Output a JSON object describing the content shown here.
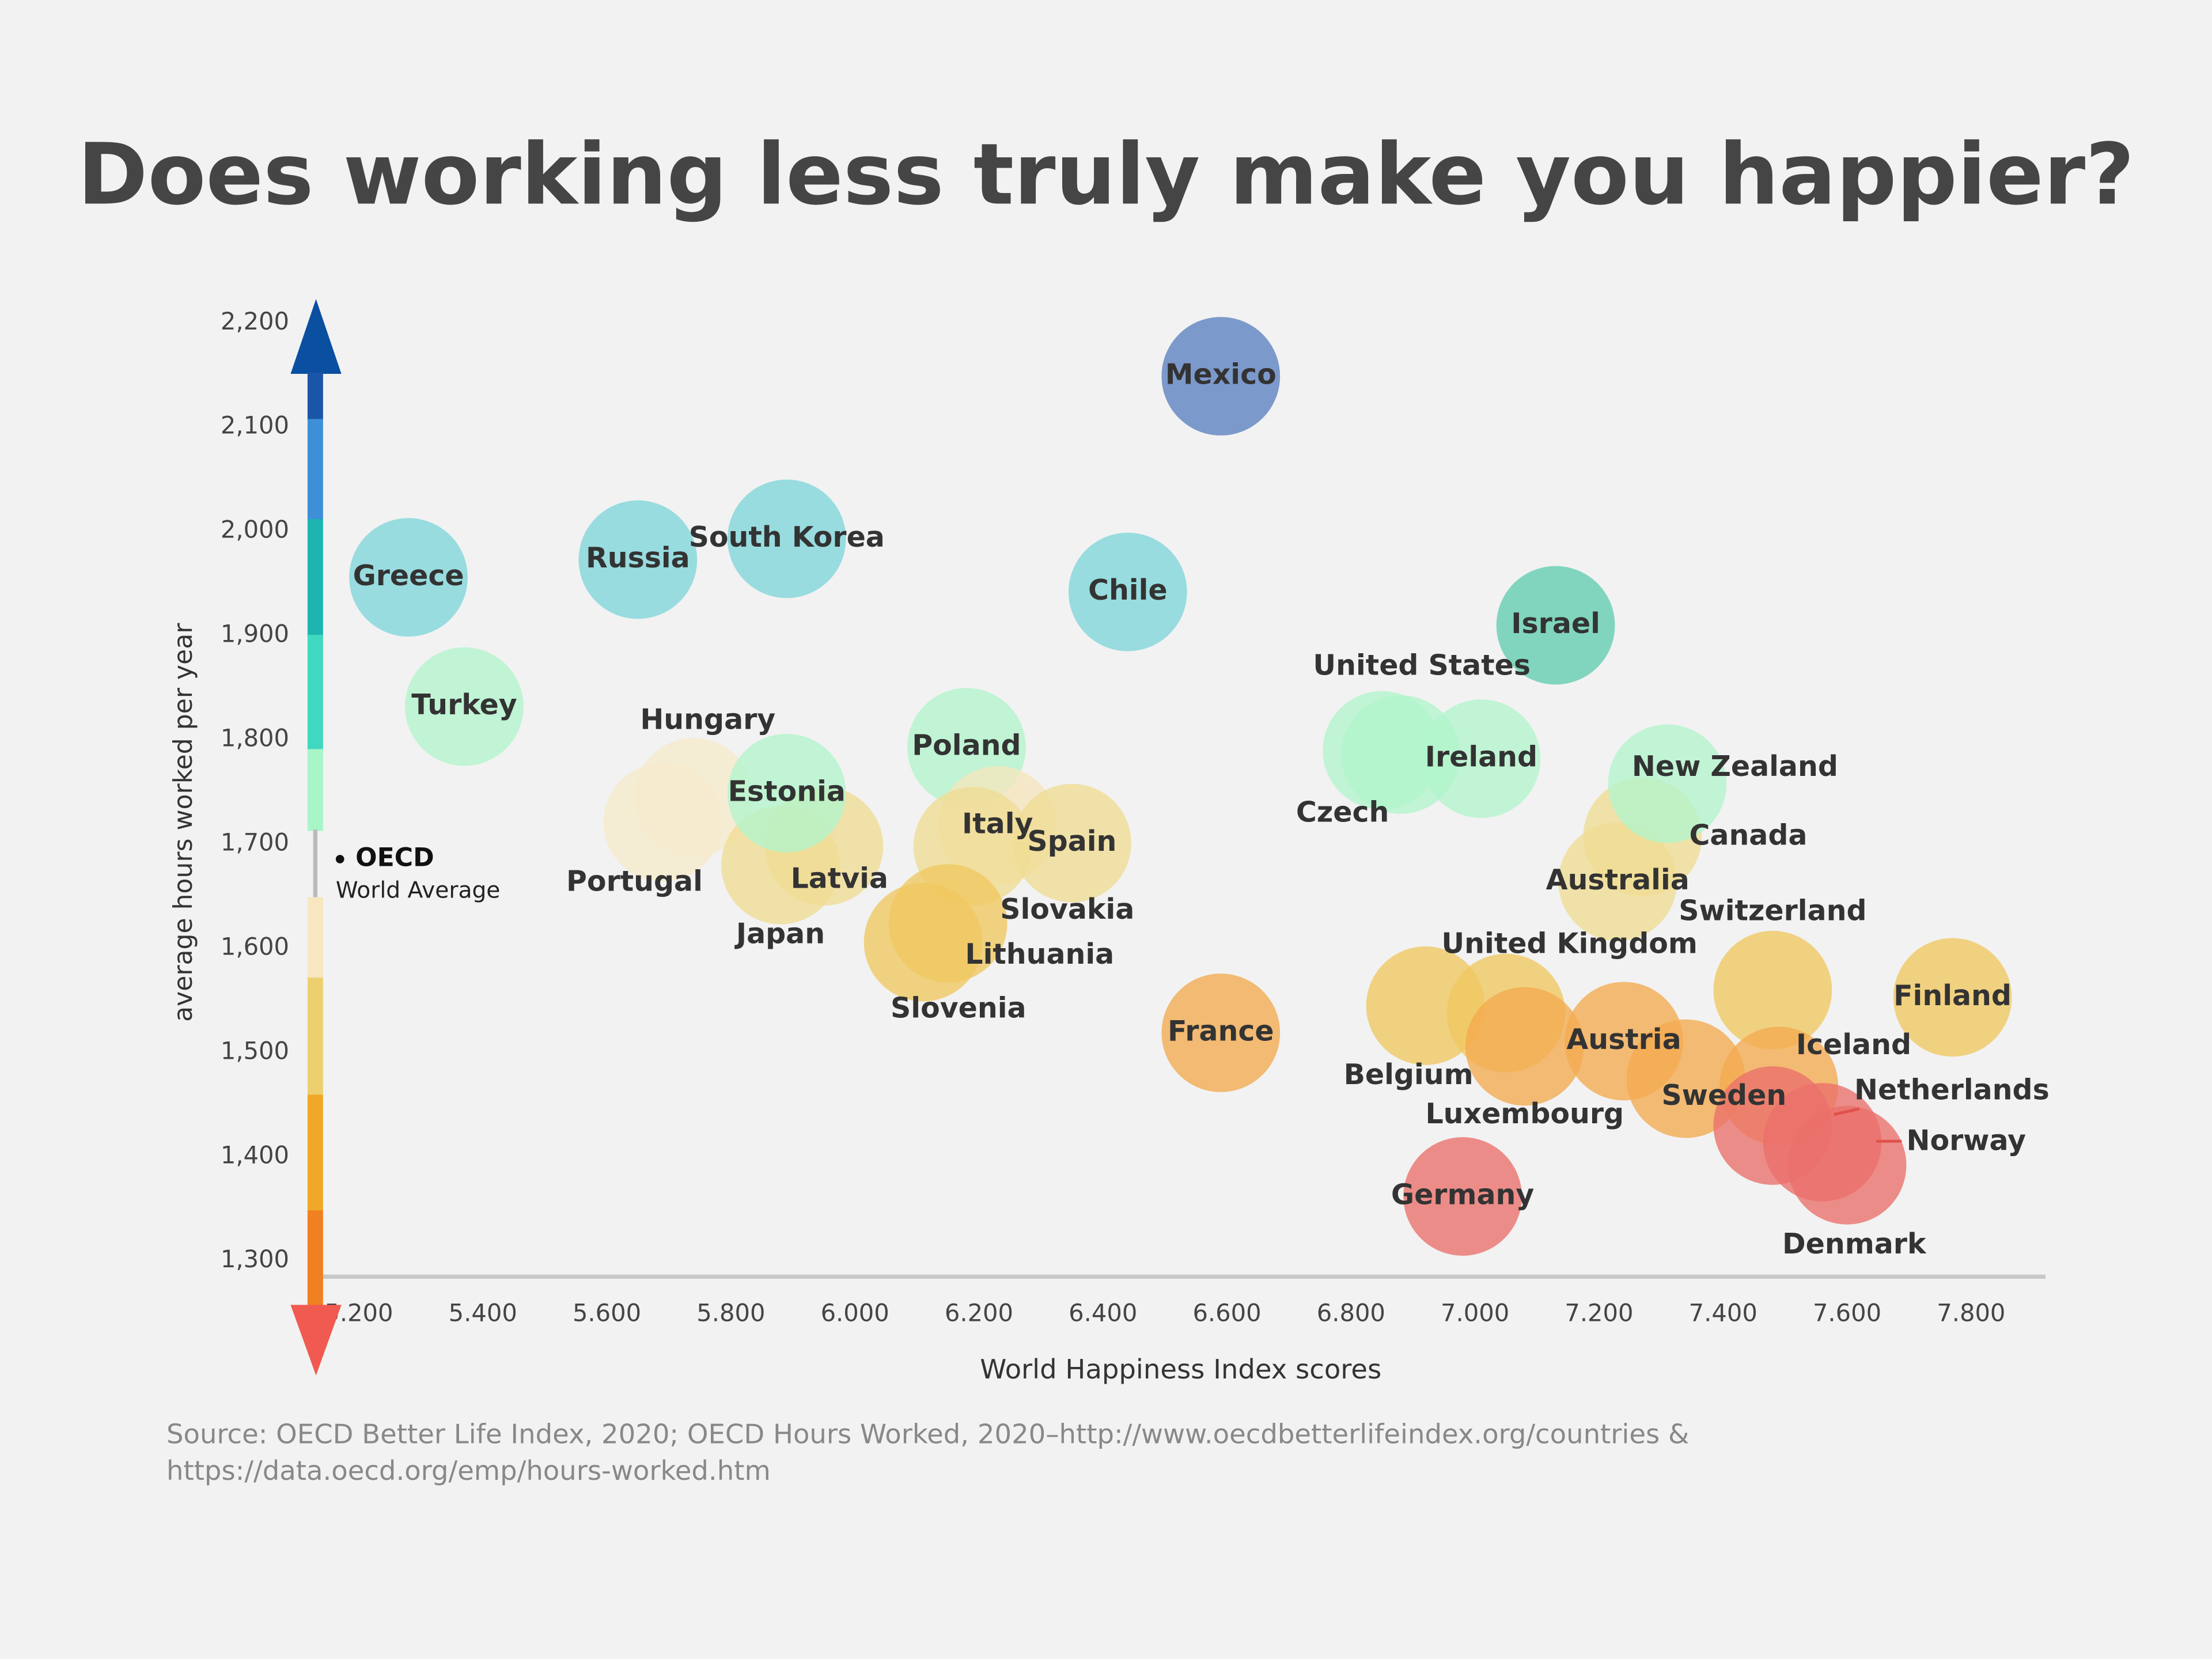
{
  "chart_data": {
    "type": "scatter",
    "title": "Does working less truly make you happier?",
    "x_label": "World Happiness Index scores",
    "y_label": "average hours worked per year",
    "source": [
      "Source: OECD Better Life Index, 2020; OECD Hours Worked, 2020–http://www.oecdbetterlifeindex.org/countries &",
      "https://data.oecd.org/emp/hours-worked.htm"
    ],
    "annotation": {
      "title": "OECD",
      "text": "World Average"
    },
    "labels": [
      "Mexico",
      "Greece",
      "Russia",
      "South Korea",
      "Chile",
      "Israel",
      "Turkey",
      "Hungary",
      "Portugal",
      "Poland",
      "Latvia",
      "Japan",
      "Italy",
      "Slovakia",
      "Spain",
      "Estonia",
      "Slovenia",
      "Lithuania",
      "France",
      "Czech",
      "United States",
      "Ireland",
      "Canada",
      "Australia",
      "New Zealand",
      "Switzerland",
      "Finland",
      "Belgium",
      "United Kingdom",
      "Luxembourg",
      "Austria",
      "Sweden",
      "Iceland",
      "Netherlands",
      "Norway",
      "Denmark",
      "Germany"
    ],
    "x": [
      6.59,
      5.28,
      5.65,
      5.89,
      6.44,
      7.13,
      5.37,
      5.74,
      5.69,
      6.18,
      5.95,
      5.88,
      6.23,
      6.19,
      6.35,
      5.89,
      6.11,
      6.15,
      6.59,
      6.85,
      6.88,
      7.01,
      7.27,
      7.23,
      7.31,
      7.48,
      7.77,
      6.92,
      7.05,
      7.08,
      7.24,
      7.34,
      7.49,
      7.48,
      7.56,
      7.6,
      6.98
    ],
    "values": [
      2149,
      1956,
      1973,
      1993,
      1942,
      1910,
      1832,
      1745,
      1721,
      1793,
      1698,
      1680,
      1718,
      1698,
      1701,
      1749,
      1606,
      1624,
      1519,
      1790,
      1786,
      1782,
      1707,
      1664,
      1758,
      1560,
      1553,
      1545,
      1538,
      1506,
      1511,
      1475,
      1468,
      1430,
      1414,
      1392,
      1362
    ],
    "colors": [
      "#5b80c0",
      "#7fd6da",
      "#7fd6da",
      "#7fd6da",
      "#7fd6da",
      "#62cdb0",
      "#b2f5cc",
      "#f6ebcc",
      "#f6ebcc",
      "#b2f5cc",
      "#efdc94",
      "#efdc94",
      "#f5e6bd",
      "#efdc94",
      "#efdc94",
      "#b2f5cc",
      "#f0c860",
      "#f0c860",
      "#f3aa50",
      "#b2f5cc",
      "#b2f5cc",
      "#b2f5cc",
      "#efdc94",
      "#efdc94",
      "#b2f5cc",
      "#f0c860",
      "#f0c860",
      "#f0c860",
      "#f0c860",
      "#f3aa50",
      "#f3aa50",
      "#f3aa50",
      "#f3aa50",
      "#ea706a",
      "#ea706a",
      "#ea706a",
      "#ea706a"
    ],
    "xlim": [
      5.14,
      7.92
    ],
    "ylim": [
      1285,
      2223
    ],
    "xticks": [
      {
        "value": 5.2,
        "label": "5.200"
      },
      {
        "value": 5.4,
        "label": "5.400"
      },
      {
        "value": 5.6,
        "label": "5.600"
      },
      {
        "value": 5.8,
        "label": "5.800"
      },
      {
        "value": 6.0,
        "label": "6.000"
      },
      {
        "value": 6.2,
        "label": "6.200"
      },
      {
        "value": 6.4,
        "label": "6.400"
      },
      {
        "value": 6.6,
        "label": "6.600"
      },
      {
        "value": 6.8,
        "label": "6.800"
      },
      {
        "value": 7.0,
        "label": "7.000"
      },
      {
        "value": 7.2,
        "label": "7.200"
      },
      {
        "value": 7.4,
        "label": "7.400"
      },
      {
        "value": 7.6,
        "label": "7.600"
      },
      {
        "value": 7.8,
        "label": "7.800"
      }
    ],
    "yticks": [
      {
        "value": 1300,
        "label": "1,300"
      },
      {
        "value": 1400,
        "label": "1,400"
      },
      {
        "value": 1500,
        "label": "1,500"
      },
      {
        "value": 1600,
        "label": "1,600"
      },
      {
        "value": 1700,
        "label": "1,700"
      },
      {
        "value": 1800,
        "label": "1,800"
      },
      {
        "value": 1900,
        "label": "1,900"
      },
      {
        "value": 2000,
        "label": "2,000"
      },
      {
        "value": 2100,
        "label": "2,100"
      },
      {
        "value": 2200,
        "label": "2,200"
      }
    ],
    "grid": false
  }
}
